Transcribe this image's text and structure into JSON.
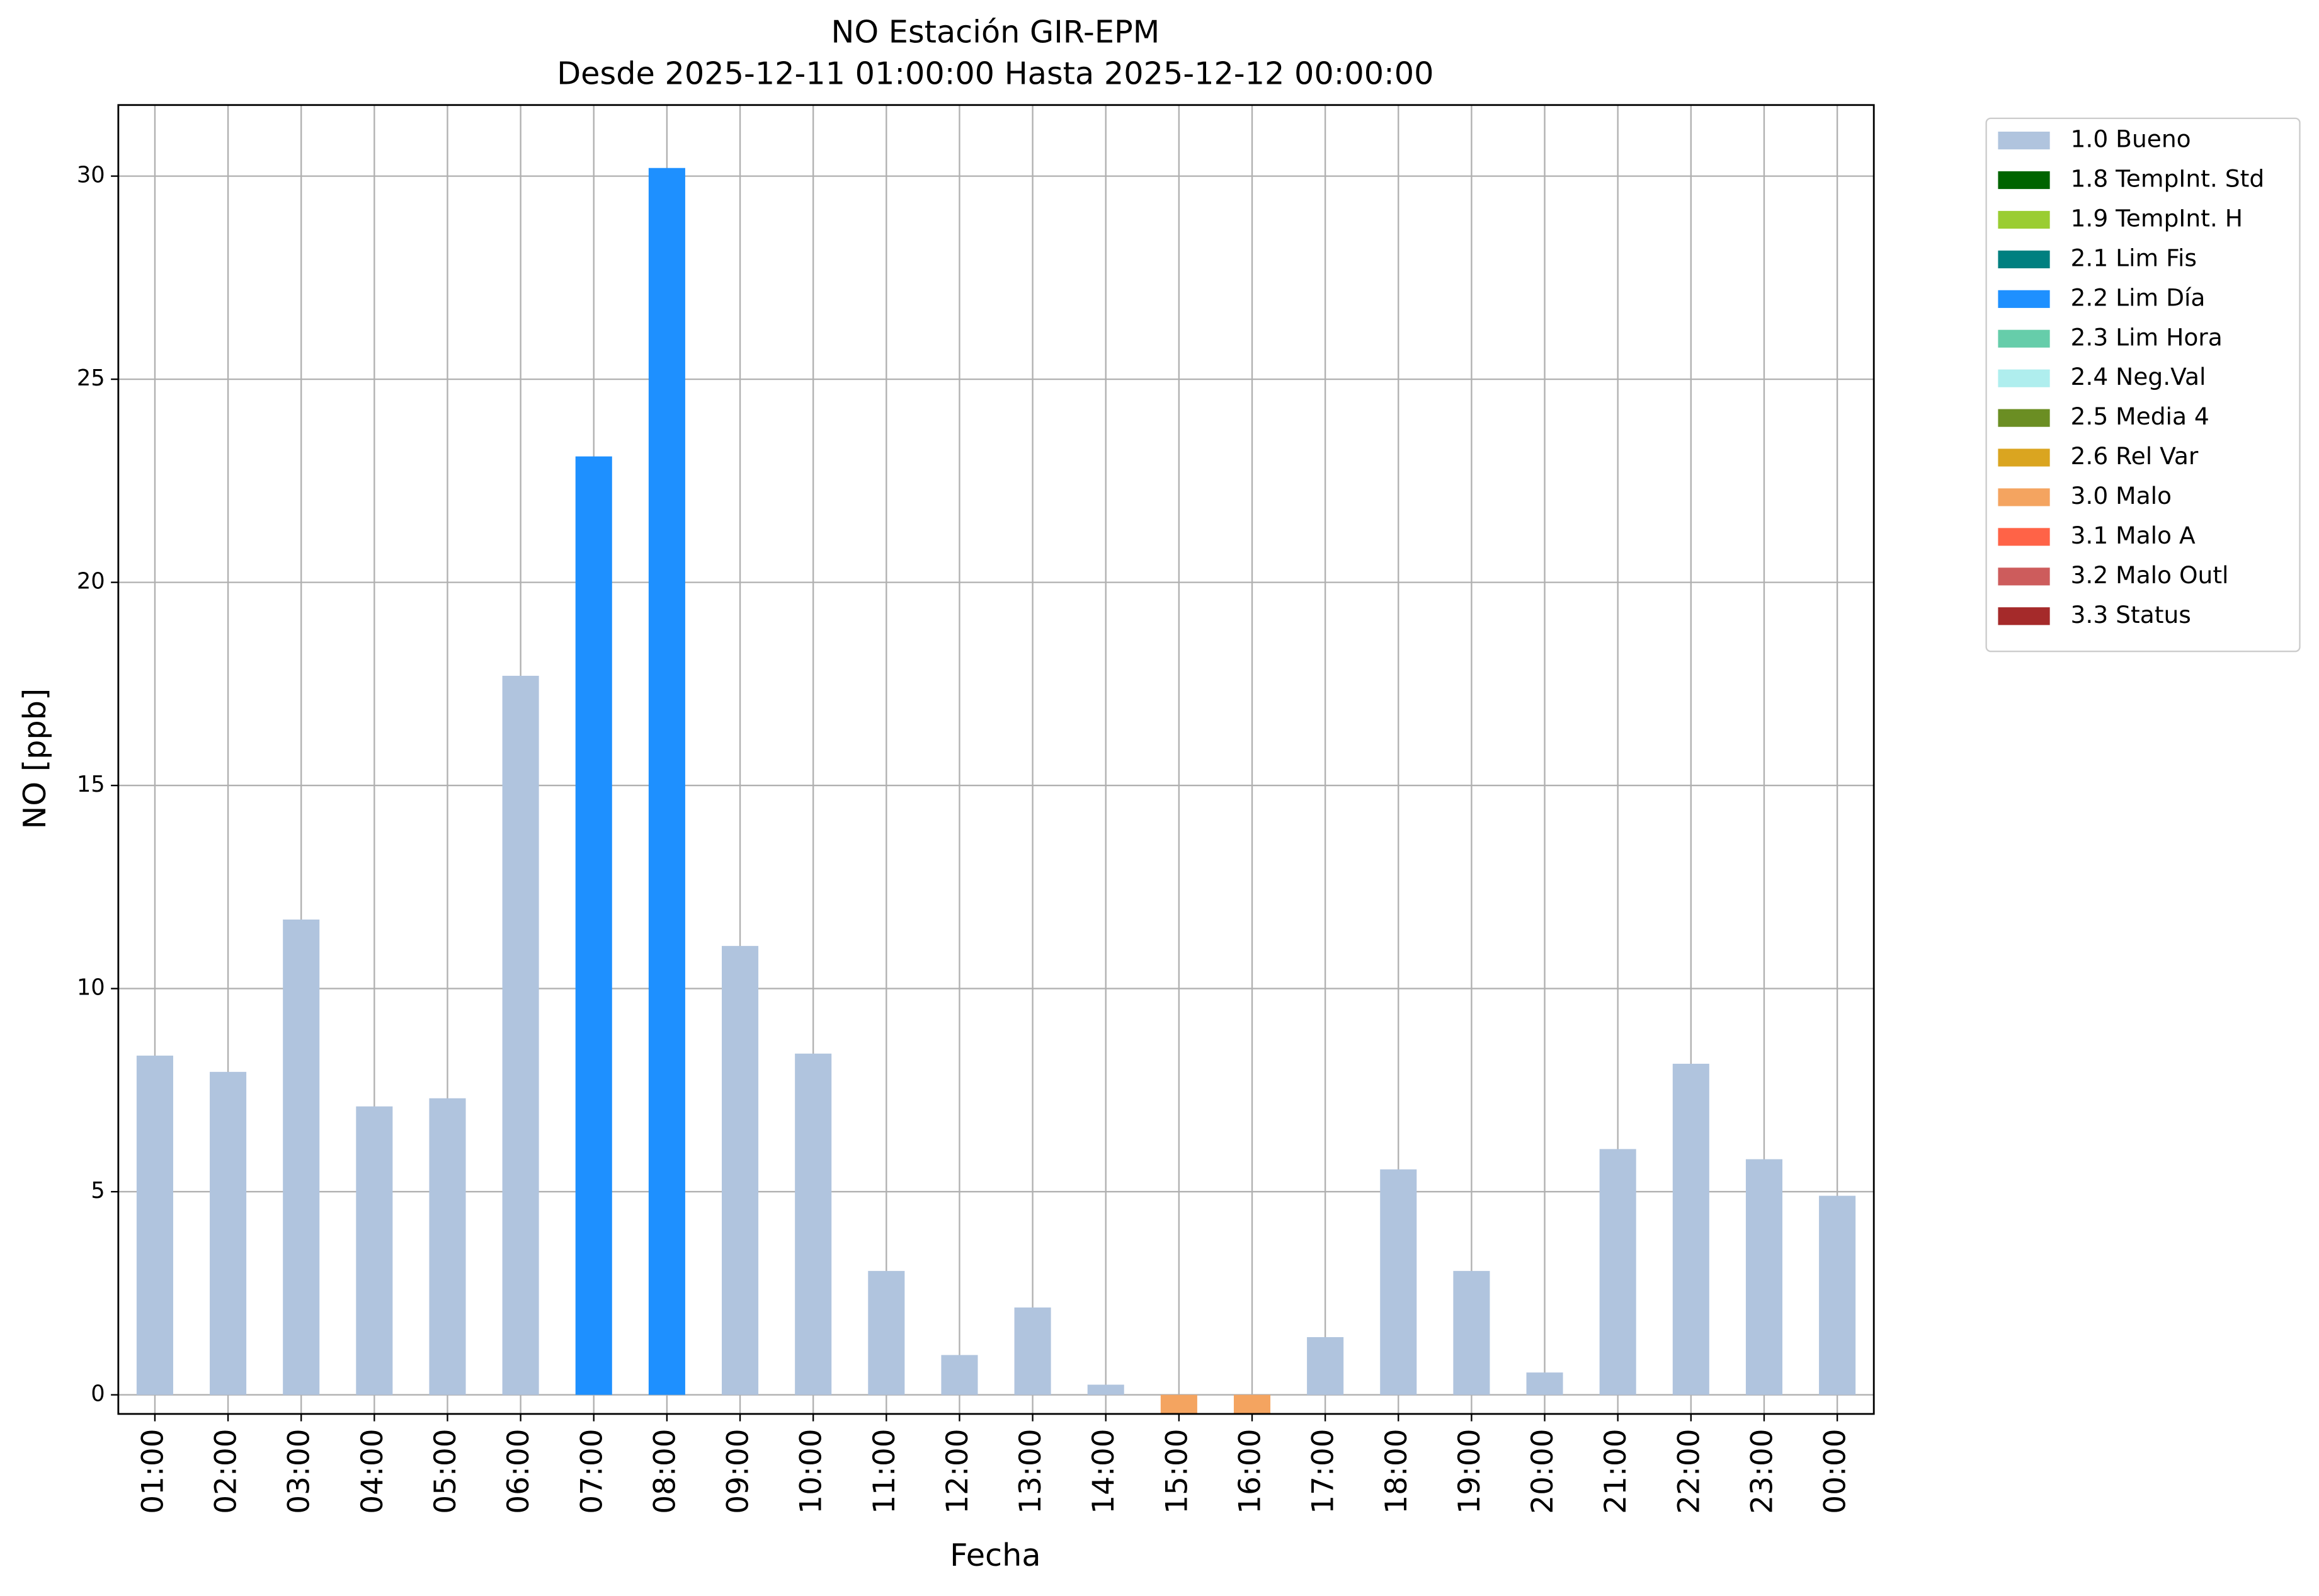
{
  "chart_data": {
    "type": "bar",
    "title": "NO Estación GIR-EPM",
    "subtitle": "Desde 2025-12-11 01:00:00 Hasta 2025-12-12 00:00:00",
    "x_label": "Fecha",
    "y_label": "NO [ppb]",
    "categories": [
      "01:00",
      "02:00",
      "03:00",
      "04:00",
      "05:00",
      "06:00",
      "07:00",
      "08:00",
      "09:00",
      "10:00",
      "11:00",
      "12:00",
      "13:00",
      "14:00",
      "15:00",
      "16:00",
      "17:00",
      "18:00",
      "19:00",
      "20:00",
      "21:00",
      "22:00",
      "23:00",
      "00:00"
    ],
    "series": [
      {
        "name": "1.0 Bueno",
        "color": "#b0c4de",
        "values": [
          8.35,
          7.95,
          11.7,
          7.1,
          7.3,
          17.7,
          null,
          null,
          11.05,
          8.4,
          3.05,
          0.98,
          2.15,
          0.25,
          null,
          null,
          1.42,
          5.55,
          3.05,
          0.55,
          6.05,
          8.15,
          5.8,
          4.9
        ]
      },
      {
        "name": "1.8 TempInt. Std",
        "color": "#006400",
        "values": [
          null,
          null,
          null,
          null,
          null,
          null,
          null,
          null,
          null,
          null,
          null,
          null,
          null,
          null,
          null,
          null,
          null,
          null,
          null,
          null,
          null,
          null,
          null,
          null
        ]
      },
      {
        "name": "1.9 TempInt. H",
        "color": "#9acd32",
        "values": [
          null,
          null,
          null,
          null,
          null,
          null,
          null,
          null,
          null,
          null,
          null,
          null,
          null,
          null,
          null,
          null,
          null,
          null,
          null,
          null,
          null,
          null,
          null,
          null
        ]
      },
      {
        "name": "2.1 Lim Fis",
        "color": "#008080",
        "values": [
          null,
          null,
          null,
          null,
          null,
          null,
          null,
          null,
          null,
          null,
          null,
          null,
          null,
          null,
          null,
          null,
          null,
          null,
          null,
          null,
          null,
          null,
          null,
          null
        ]
      },
      {
        "name": "2.2 Lim Día",
        "color": "#1e90ff",
        "values": [
          null,
          null,
          null,
          null,
          null,
          null,
          23.1,
          30.2,
          null,
          null,
          null,
          null,
          null,
          null,
          null,
          null,
          null,
          null,
          null,
          null,
          null,
          null,
          null,
          null
        ]
      },
      {
        "name": "2.3 Lim Hora",
        "color": "#66cdaa",
        "values": [
          null,
          null,
          null,
          null,
          null,
          null,
          null,
          null,
          null,
          null,
          null,
          null,
          null,
          null,
          null,
          null,
          null,
          null,
          null,
          null,
          null,
          null,
          null,
          null
        ]
      },
      {
        "name": "2.4 Neg.Val",
        "color": "#afeeee",
        "values": [
          null,
          null,
          null,
          null,
          null,
          null,
          null,
          null,
          null,
          null,
          null,
          null,
          null,
          null,
          null,
          null,
          null,
          null,
          null,
          null,
          null,
          null,
          null,
          null
        ]
      },
      {
        "name": "2.5 Media 4",
        "color": "#6b8e23",
        "values": [
          null,
          null,
          null,
          null,
          null,
          null,
          null,
          null,
          null,
          null,
          null,
          null,
          null,
          null,
          null,
          null,
          null,
          null,
          null,
          null,
          null,
          null,
          null,
          null
        ]
      },
      {
        "name": "2.6 Rel Var",
        "color": "#daa520",
        "values": [
          null,
          null,
          null,
          null,
          null,
          null,
          null,
          null,
          null,
          null,
          null,
          null,
          null,
          null,
          null,
          null,
          null,
          null,
          null,
          null,
          null,
          null,
          null,
          null
        ]
      },
      {
        "name": "3.0 Malo",
        "color": "#f4a460",
        "values": [
          null,
          null,
          null,
          null,
          null,
          null,
          null,
          null,
          null,
          null,
          null,
          null,
          null,
          null,
          -0.45,
          -0.45,
          null,
          null,
          null,
          null,
          null,
          null,
          null,
          null
        ]
      },
      {
        "name": "3.1 Malo A",
        "color": "#ff6347",
        "values": [
          null,
          null,
          null,
          null,
          null,
          null,
          null,
          null,
          null,
          null,
          null,
          null,
          null,
          null,
          null,
          null,
          null,
          null,
          null,
          null,
          null,
          null,
          null,
          null
        ]
      },
      {
        "name": "3.2 Malo Outl",
        "color": "#cd5c5c",
        "values": [
          null,
          null,
          null,
          null,
          null,
          null,
          null,
          null,
          null,
          null,
          null,
          null,
          null,
          null,
          null,
          null,
          null,
          null,
          null,
          null,
          null,
          null,
          null,
          null
        ]
      },
      {
        "name": "3.3 Status",
        "color": "#a52a2a",
        "values": [
          null,
          null,
          null,
          null,
          null,
          null,
          null,
          null,
          null,
          null,
          null,
          null,
          null,
          null,
          null,
          null,
          null,
          null,
          null,
          null,
          null,
          null,
          null,
          null
        ]
      }
    ],
    "ylim": [
      -0.47,
      31.75
    ],
    "yticks": [
      0,
      5,
      10,
      15,
      20,
      25,
      30
    ],
    "grid": true,
    "legend": "outside right"
  }
}
